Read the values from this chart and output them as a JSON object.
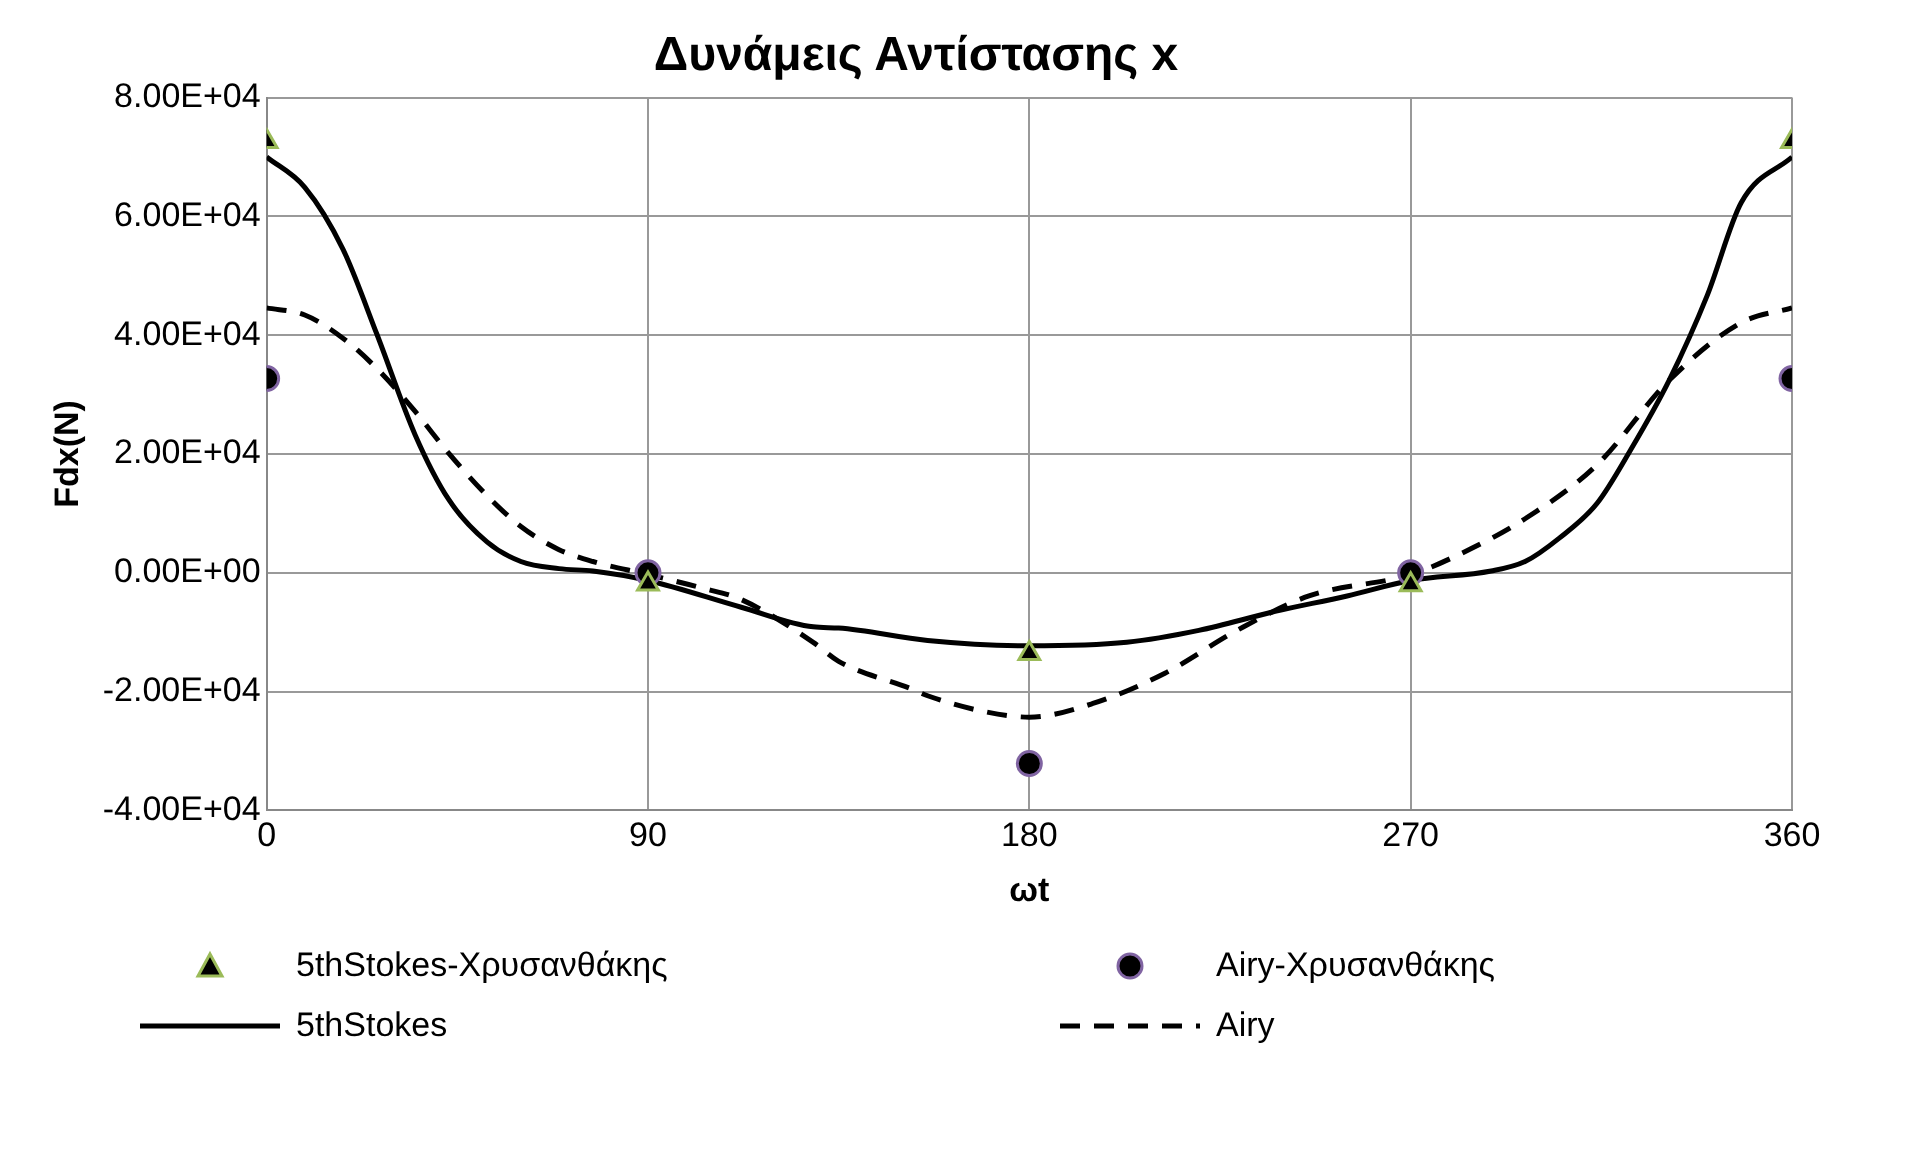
{
  "chart_data": {
    "type": "line",
    "title": "Δυνάμεις Αντίστασης x",
    "xlabel": "ωt",
    "ylabel": "Fdx(N)",
    "xlim": [
      0,
      360
    ],
    "xticks": [
      0,
      90,
      180,
      270,
      360
    ],
    "ylim": [
      -40000,
      80000
    ],
    "yticks": [
      {
        "value": -40000,
        "label": "-4.00E+04"
      },
      {
        "value": -20000,
        "label": "-2.00E+04"
      },
      {
        "value": 0,
        "label": "0.00E+00"
      },
      {
        "value": 20000,
        "label": "2.00E+04"
      },
      {
        "value": 40000,
        "label": "4.00E+04"
      },
      {
        "value": 60000,
        "label": "6.00E+04"
      },
      {
        "value": 80000,
        "label": "8.00E+04"
      }
    ],
    "grid": true,
    "legend": "bottom",
    "series": [
      {
        "name": "5thStokes-Χρυσανθάκης",
        "type": "scatter",
        "marker": "triangle",
        "color": "#000000",
        "x": [
          0,
          90,
          180,
          270,
          360
        ],
        "values": [
          72600,
          -1900,
          -13600,
          -2000,
          72600
        ]
      },
      {
        "name": "Airy-Χρυσανθάκης",
        "type": "scatter",
        "marker": "circle",
        "color": "#000000",
        "x": [
          0,
          90,
          180,
          270,
          360
        ],
        "values": [
          32700,
          0,
          -32100,
          0,
          32700
        ]
      },
      {
        "name": "5thStokes",
        "type": "line",
        "line_style": "solid",
        "marker": "none",
        "color": "#000000",
        "x": [
          0,
          9,
          18,
          26,
          35,
          43,
          52,
          60,
          69,
          77,
          90,
          112,
          129,
          135,
          156,
          180,
          203,
          220,
          238,
          255,
          270,
          289,
          297,
          305,
          314,
          322,
          331,
          340,
          348,
          360
        ],
        "values": [
          70000,
          64900,
          54500,
          40200,
          23300,
          12300,
          5200,
          1900,
          700,
          300,
          -1300,
          -5800,
          -9100,
          -9300,
          -11400,
          -12300,
          -11700,
          -9700,
          -6500,
          -3900,
          -1300,
          300,
          1900,
          5800,
          11700,
          20800,
          32400,
          46700,
          62300,
          70000
        ]
      },
      {
        "name": "Airy",
        "type": "line",
        "line_style": "dashed",
        "marker": "none",
        "color": "#000000",
        "x": [
          0,
          9,
          18,
          26,
          35,
          43,
          52,
          60,
          69,
          77,
          90,
          103,
          112,
          129,
          135,
          152,
          156,
          169,
          180,
          195,
          212,
          229,
          246,
          270,
          280,
          297,
          314,
          331,
          348,
          360
        ],
        "values": [
          44600,
          43400,
          39500,
          34400,
          27200,
          20100,
          13000,
          7800,
          3900,
          1900,
          -300,
          -2600,
          -4500,
          -11700,
          -14900,
          -19500,
          -20700,
          -23300,
          -24300,
          -22000,
          -16900,
          -9700,
          -3900,
          -300,
          2600,
          9100,
          18200,
          32400,
          42100,
          44600
        ]
      }
    ]
  }
}
